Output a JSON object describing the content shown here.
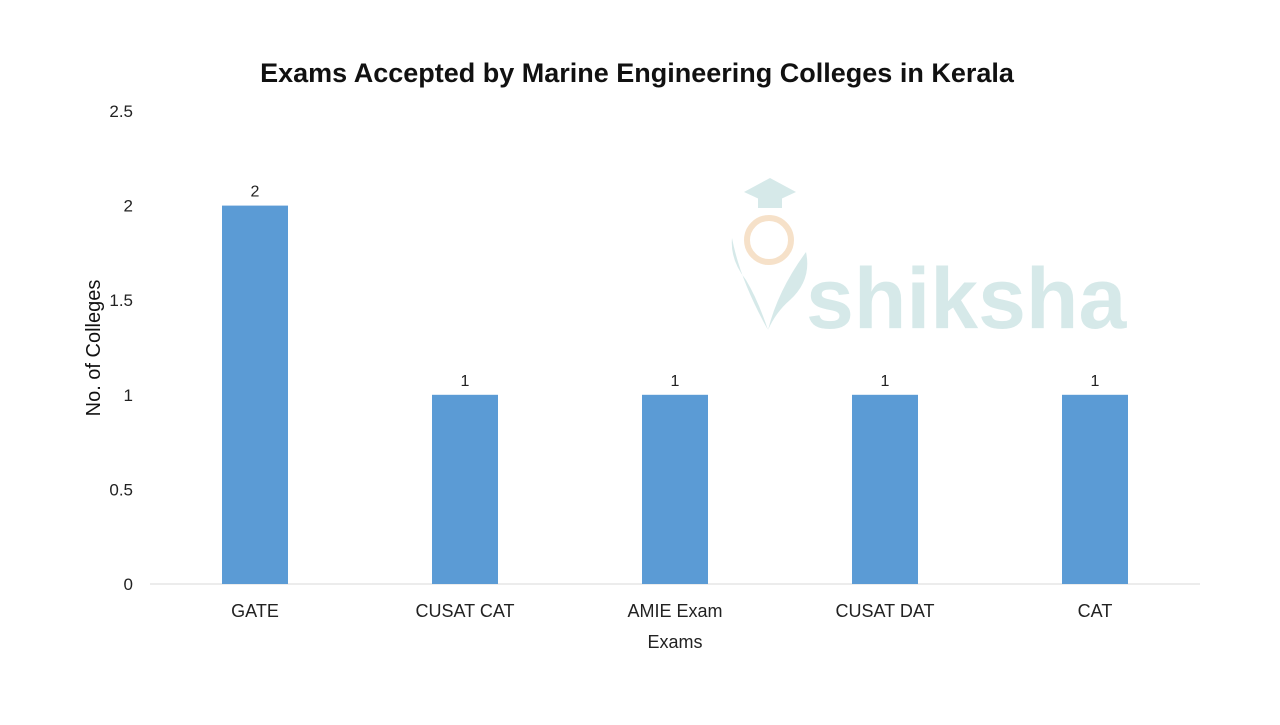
{
  "chart_data": {
    "type": "bar",
    "title": "Exams Accepted by Marine Engineering Colleges in Kerala",
    "xlabel": "Exams",
    "ylabel": "No. of Colleges",
    "categories": [
      "GATE",
      "CUSAT CAT",
      "AMIE Exam",
      "CUSAT DAT",
      "CAT"
    ],
    "values": [
      2,
      1,
      1,
      1,
      1
    ],
    "data_labels": [
      "2",
      "1",
      "1",
      "1",
      "1"
    ],
    "ylim": [
      0,
      2.5
    ],
    "yticks": [
      0,
      0.5,
      1,
      1.5,
      2,
      2.5
    ],
    "ytick_labels": [
      "0",
      "0.5",
      "1",
      "1.5",
      "2",
      "2.5"
    ],
    "grid": false,
    "legend": "none",
    "bar_color": "#5b9bd5"
  },
  "watermark": {
    "text": "shiksha",
    "color": "#cfe6e6",
    "accent_color": "#f5dcc0"
  }
}
